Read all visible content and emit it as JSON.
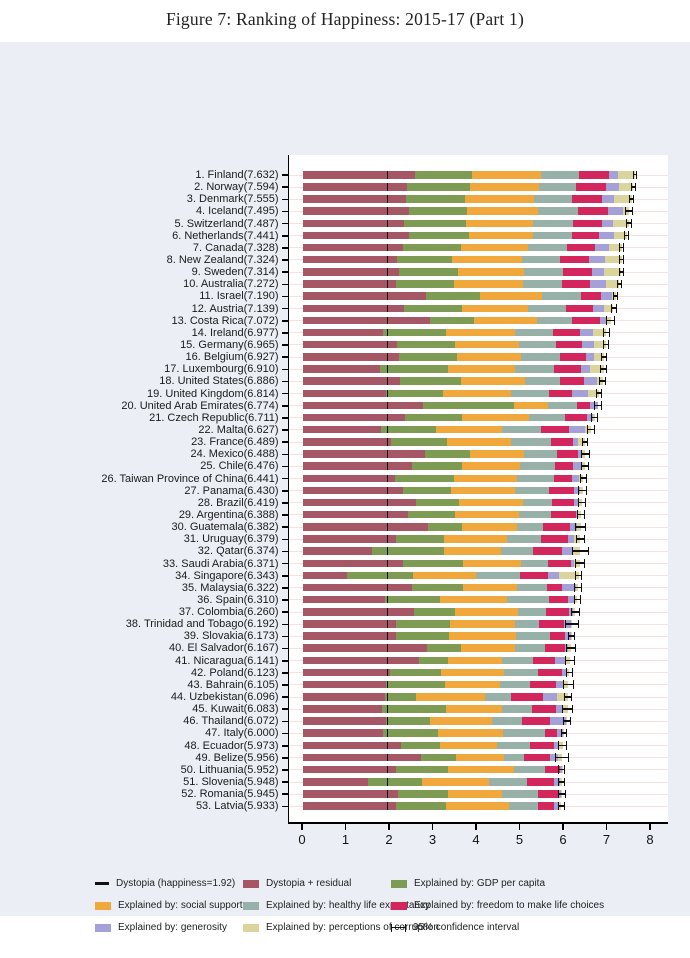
{
  "title": "Figure 7: Ranking of Happiness: 2015-17 (Part 1)",
  "chart_data": {
    "type": "bar",
    "orientation": "horizontal-stacked",
    "title": "Figure 7: Ranking of Happiness: 2015-17 (Part 1)",
    "xlabel": "",
    "ylabel": "",
    "xlim": [
      0,
      8.4
    ],
    "x_ticks": [
      0,
      1,
      2,
      3,
      4,
      5,
      6,
      7,
      8
    ],
    "dystopia_line": 1.92,
    "grid": "light horizontal line per country row",
    "legend_position": "bottom, 3 columns x 3 rows",
    "segment_order": [
      "dystopia_residual",
      "gdp",
      "social",
      "health",
      "freedom",
      "generosity",
      "corruption"
    ],
    "colors": {
      "dystopia_residual": "#a55766",
      "gdp": "#7d9b53",
      "social": "#f0a73c",
      "health": "#97b1a9",
      "freedom": "#d2265c",
      "generosity": "#a3a1d8",
      "corruption": "#dbd49c",
      "axis": "#000000",
      "background": "#ebeff5",
      "plot_background": "#ffffff",
      "error_bar": "#111111"
    },
    "legend": [
      {
        "label": "Dystopia (happiness=1.92)",
        "icon": "dash"
      },
      {
        "label": "Dystopia + residual",
        "icon": "swatch",
        "color_key": "dystopia_residual"
      },
      {
        "label": "Explained by: GDP per capita",
        "icon": "swatch",
        "color_key": "gdp"
      },
      {
        "label": "Explained by: social support",
        "icon": "swatch",
        "color_key": "social"
      },
      {
        "label": "Explained by: healthy life expectancy",
        "icon": "swatch",
        "color_key": "health"
      },
      {
        "label": "Explained by: freedom to make life choices",
        "icon": "swatch",
        "color_key": "freedom"
      },
      {
        "label": "Explained by: generosity",
        "icon": "swatch",
        "color_key": "generosity"
      },
      {
        "label": "Explained by: perceptions of corruption",
        "icon": "swatch",
        "color_key": "corruption"
      },
      {
        "label": "95% confidence interval",
        "icon": "ci"
      }
    ],
    "countries": [
      {
        "rank": 1,
        "name": "Finland",
        "score": 7.632,
        "values": [
          2.585,
          1.305,
          1.592,
          0.874,
          0.681,
          0.202,
          0.393
        ],
        "ci": 0.055
      },
      {
        "rank": 2,
        "name": "Norway",
        "score": 7.594,
        "values": [
          2.383,
          1.456,
          1.582,
          0.861,
          0.686,
          0.286,
          0.34
        ],
        "ci": 0.055
      },
      {
        "rank": 3,
        "name": "Denmark",
        "score": 7.555,
        "values": [
          2.371,
          1.351,
          1.59,
          0.868,
          0.683,
          0.284,
          0.408
        ],
        "ci": 0.06
      },
      {
        "rank": 4,
        "name": "Iceland",
        "score": 7.495,
        "values": [
          2.426,
          1.343,
          1.644,
          0.914,
          0.677,
          0.353,
          0.138
        ],
        "ci": 0.09
      },
      {
        "rank": 5,
        "name": "Switzerland",
        "score": 7.487,
        "values": [
          2.318,
          1.42,
          1.549,
          0.927,
          0.66,
          0.256,
          0.357
        ],
        "ci": 0.07
      },
      {
        "rank": 6,
        "name": "Netherlands",
        "score": 7.441,
        "values": [
          2.448,
          1.361,
          1.488,
          0.878,
          0.638,
          0.333,
          0.295
        ],
        "ci": 0.055
      },
      {
        "rank": 7,
        "name": "Canada",
        "score": 7.328,
        "values": [
          2.305,
          1.33,
          1.532,
          0.896,
          0.653,
          0.321,
          0.291
        ],
        "ci": 0.06
      },
      {
        "rank": 8,
        "name": "New Zealand",
        "score": 7.324,
        "values": [
          2.156,
          1.268,
          1.601,
          0.876,
          0.669,
          0.365,
          0.389
        ],
        "ci": 0.06
      },
      {
        "rank": 9,
        "name": "Sweden",
        "score": 7.314,
        "values": [
          2.218,
          1.355,
          1.501,
          0.913,
          0.659,
          0.285,
          0.383
        ],
        "ci": 0.06
      },
      {
        "rank": 10,
        "name": "Australia",
        "score": 7.272,
        "values": [
          2.139,
          1.34,
          1.573,
          0.91,
          0.647,
          0.361,
          0.302
        ],
        "ci": 0.06
      },
      {
        "rank": 11,
        "name": "Israel",
        "score": 7.19,
        "values": [
          2.817,
          1.244,
          1.433,
          0.888,
          0.464,
          0.262,
          0.082
        ],
        "ci": 0.06
      },
      {
        "rank": 12,
        "name": "Austria",
        "score": 7.139,
        "values": [
          2.32,
          1.341,
          1.504,
          0.891,
          0.617,
          0.242,
          0.224
        ],
        "ci": 0.07
      },
      {
        "rank": 13,
        "name": "Costa Rica",
        "score": 7.072,
        "values": [
          2.91,
          1.01,
          1.459,
          0.817,
          0.632,
          0.143,
          0.101
        ],
        "ci": 0.1
      },
      {
        "rank": 14,
        "name": "Ireland",
        "score": 6.977,
        "values": [
          1.843,
          1.448,
          1.583,
          0.876,
          0.614,
          0.307,
          0.306
        ],
        "ci": 0.07
      },
      {
        "rank": 15,
        "name": "Germany",
        "score": 6.965,
        "values": [
          2.151,
          1.34,
          1.474,
          0.861,
          0.586,
          0.273,
          0.28
        ],
        "ci": 0.07
      },
      {
        "rank": 16,
        "name": "Belgium",
        "score": 6.927,
        "values": [
          2.215,
          1.324,
          1.483,
          0.894,
          0.583,
          0.188,
          0.24
        ],
        "ci": 0.07
      },
      {
        "rank": 17,
        "name": "Luxembourg",
        "score": 6.91,
        "values": [
          1.769,
          1.576,
          1.52,
          0.896,
          0.632,
          0.196,
          0.321
        ],
        "ci": 0.08
      },
      {
        "rank": 18,
        "name": "United States",
        "score": 6.886,
        "values": [
          2.227,
          1.398,
          1.471,
          0.819,
          0.547,
          0.291,
          0.133
        ],
        "ci": 0.07
      },
      {
        "rank": 19,
        "name": "United Kingdom",
        "score": 6.814,
        "values": [
          1.912,
          1.301,
          1.559,
          0.883,
          0.533,
          0.354,
          0.272
        ],
        "ci": 0.07
      },
      {
        "rank": 20,
        "name": "United Arab Emirates",
        "score": 6.774,
        "values": [
          2.762,
          2.096,
          0.776,
          0.67,
          0.284,
          0.186,
          0.0
        ],
        "ci": 0.09
      },
      {
        "rank": 21,
        "name": "Czech Republic",
        "score": 6.711,
        "values": [
          2.354,
          1.301,
          1.536,
          0.825,
          0.511,
          0.149,
          0.035
        ],
        "ci": 0.08
      },
      {
        "rank": 22,
        "name": "Malta",
        "score": 6.627,
        "values": [
          1.785,
          1.27,
          1.525,
          0.884,
          0.645,
          0.376,
          0.142
        ],
        "ci": 0.09
      },
      {
        "rank": 23,
        "name": "France",
        "score": 6.489,
        "values": [
          2.028,
          1.293,
          1.466,
          0.908,
          0.52,
          0.098,
          0.176
        ],
        "ci": 0.07
      },
      {
        "rank": 24,
        "name": "Mexico",
        "score": 6.488,
        "values": [
          2.794,
          1.038,
          1.252,
          0.761,
          0.479,
          0.069,
          0.095
        ],
        "ci": 0.1
      },
      {
        "rank": 25,
        "name": "Chile",
        "score": 6.476,
        "values": [
          2.517,
          1.131,
          1.331,
          0.808,
          0.431,
          0.197,
          0.061
        ],
        "ci": 0.09
      },
      {
        "rank": 26,
        "name": "Taiwan Province of China",
        "score": 6.441,
        "values": [
          2.117,
          1.365,
          1.436,
          0.857,
          0.418,
          0.151,
          0.097
        ],
        "ci": 0.08
      },
      {
        "rank": 27,
        "name": "Panama",
        "score": 6.43,
        "values": [
          2.292,
          1.112,
          1.463,
          0.779,
          0.596,
          0.125,
          0.063
        ],
        "ci": 0.11
      },
      {
        "rank": 28,
        "name": "Brazil",
        "score": 6.419,
        "values": [
          2.593,
          0.986,
          1.474,
          0.675,
          0.493,
          0.11,
          0.088
        ],
        "ci": 0.09
      },
      {
        "rank": 29,
        "name": "Argentina",
        "score": 6.388,
        "values": [
          2.417,
          1.073,
          1.468,
          0.744,
          0.57,
          0.062,
          0.054
        ],
        "ci": 0.09
      },
      {
        "rank": 30,
        "name": "Guatemala",
        "score": 6.382,
        "values": [
          2.871,
          0.781,
          1.268,
          0.608,
          0.604,
          0.179,
          0.071
        ],
        "ci": 0.12
      },
      {
        "rank": 31,
        "name": "Uruguay",
        "score": 6.379,
        "values": [
          2.146,
          1.093,
          1.459,
          0.771,
          0.625,
          0.13,
          0.155
        ],
        "ci": 0.1
      },
      {
        "rank": 32,
        "name": "Qatar",
        "score": 6.374,
        "values": [
          1.593,
          1.649,
          1.303,
          0.748,
          0.654,
          0.256,
          0.171
        ],
        "ci": 0.2
      },
      {
        "rank": 33,
        "name": "Saudi Arabia",
        "score": 6.371,
        "values": [
          2.291,
          1.379,
          1.331,
          0.637,
          0.524,
          0.08,
          0.129
        ],
        "ci": 0.11
      },
      {
        "rank": 34,
        "name": "Singapore",
        "score": 6.343,
        "values": [
          1.006,
          1.529,
          1.451,
          1.008,
          0.631,
          0.261,
          0.457
        ],
        "ci": 0.08
      },
      {
        "rank": 35,
        "name": "Malaysia",
        "score": 6.322,
        "values": [
          2.512,
          1.161,
          1.258,
          0.669,
          0.356,
          0.311,
          0.055
        ],
        "ci": 0.1
      },
      {
        "rank": 36,
        "name": "Spain",
        "score": 6.31,
        "values": [
          1.891,
          1.251,
          1.538,
          0.965,
          0.449,
          0.142,
          0.074
        ],
        "ci": 0.07
      },
      {
        "rank": 37,
        "name": "Colombia",
        "score": 6.26,
        "values": [
          2.543,
          0.96,
          1.439,
          0.635,
          0.531,
          0.099,
          0.053
        ],
        "ci": 0.1
      },
      {
        "rank": 38,
        "name": "Trinidad and Tobago",
        "score": 6.192,
        "values": [
          2.148,
          1.223,
          1.492,
          0.564,
          0.575,
          0.171,
          0.019
        ],
        "ci": 0.16
      },
      {
        "rank": 39,
        "name": "Slovakia",
        "score": 6.173,
        "values": [
          2.147,
          1.21,
          1.537,
          0.776,
          0.354,
          0.135,
          0.014
        ],
        "ci": 0.08
      },
      {
        "rank": 40,
        "name": "El Salvador",
        "score": 6.167,
        "values": [
          2.847,
          0.794,
          1.242,
          0.675,
          0.462,
          0.083,
          0.064
        ],
        "ci": 0.12
      },
      {
        "rank": 41,
        "name": "Nicaragua",
        "score": 6.141,
        "values": [
          2.665,
          0.668,
          1.245,
          0.7,
          0.527,
          0.208,
          0.128
        ],
        "ci": 0.12
      },
      {
        "rank": 42,
        "name": "Poland",
        "score": 6.123,
        "values": [
          2.0,
          1.176,
          1.448,
          0.781,
          0.546,
          0.108,
          0.064
        ],
        "ci": 0.08
      },
      {
        "rank": 43,
        "name": "Bahrain",
        "score": 6.105,
        "values": [
          1.897,
          1.366,
          1.269,
          0.686,
          0.602,
          0.172,
          0.113
        ],
        "ci": 0.13
      },
      {
        "rank": 44,
        "name": "Uzbekistan",
        "score": 6.096,
        "values": [
          1.877,
          0.719,
          1.584,
          0.605,
          0.724,
          0.328,
          0.259
        ],
        "ci": 0.09
      },
      {
        "rank": 45,
        "name": "Kuwait",
        "score": 6.083,
        "values": [
          1.806,
          1.474,
          1.301,
          0.675,
          0.554,
          0.167,
          0.106
        ],
        "ci": 0.12
      },
      {
        "rank": 46,
        "name": "Thailand",
        "score": 6.072,
        "values": [
          1.902,
          1.016,
          1.417,
          0.707,
          0.637,
          0.364,
          0.029
        ],
        "ci": 0.09
      },
      {
        "rank": 47,
        "name": "Italy",
        "score": 6.0,
        "values": [
          1.843,
          1.264,
          1.501,
          0.946,
          0.281,
          0.137,
          0.028
        ],
        "ci": 0.08
      },
      {
        "rank": 48,
        "name": "Ecuador",
        "score": 5.973,
        "values": [
          2.257,
          0.896,
          1.312,
          0.761,
          0.55,
          0.099,
          0.098
        ],
        "ci": 0.1
      },
      {
        "rank": 49,
        "name": "Belize",
        "score": 5.956,
        "values": [
          2.709,
          0.807,
          1.101,
          0.474,
          0.593,
          0.183,
          0.089
        ],
        "ci": 0.16
      },
      {
        "rank": 50,
        "name": "Lithuania",
        "score": 5.952,
        "values": [
          2.13,
          1.197,
          1.527,
          0.716,
          0.35,
          0.026,
          0.006
        ],
        "ci": 0.08
      },
      {
        "rank": 51,
        "name": "Slovenia",
        "score": 5.948,
        "values": [
          1.487,
          1.258,
          1.523,
          0.889,
          0.604,
          0.148,
          0.039
        ],
        "ci": 0.08
      },
      {
        "rank": 52,
        "name": "Romania",
        "score": 5.945,
        "values": [
          2.177,
          1.162,
          1.232,
          0.825,
          0.462,
          0.083,
          0.004
        ],
        "ci": 0.09
      },
      {
        "rank": 53,
        "name": "Latvia",
        "score": 5.933,
        "values": [
          2.139,
          1.148,
          1.454,
          0.671,
          0.363,
          0.092,
          0.066
        ],
        "ci": 0.08
      }
    ]
  }
}
